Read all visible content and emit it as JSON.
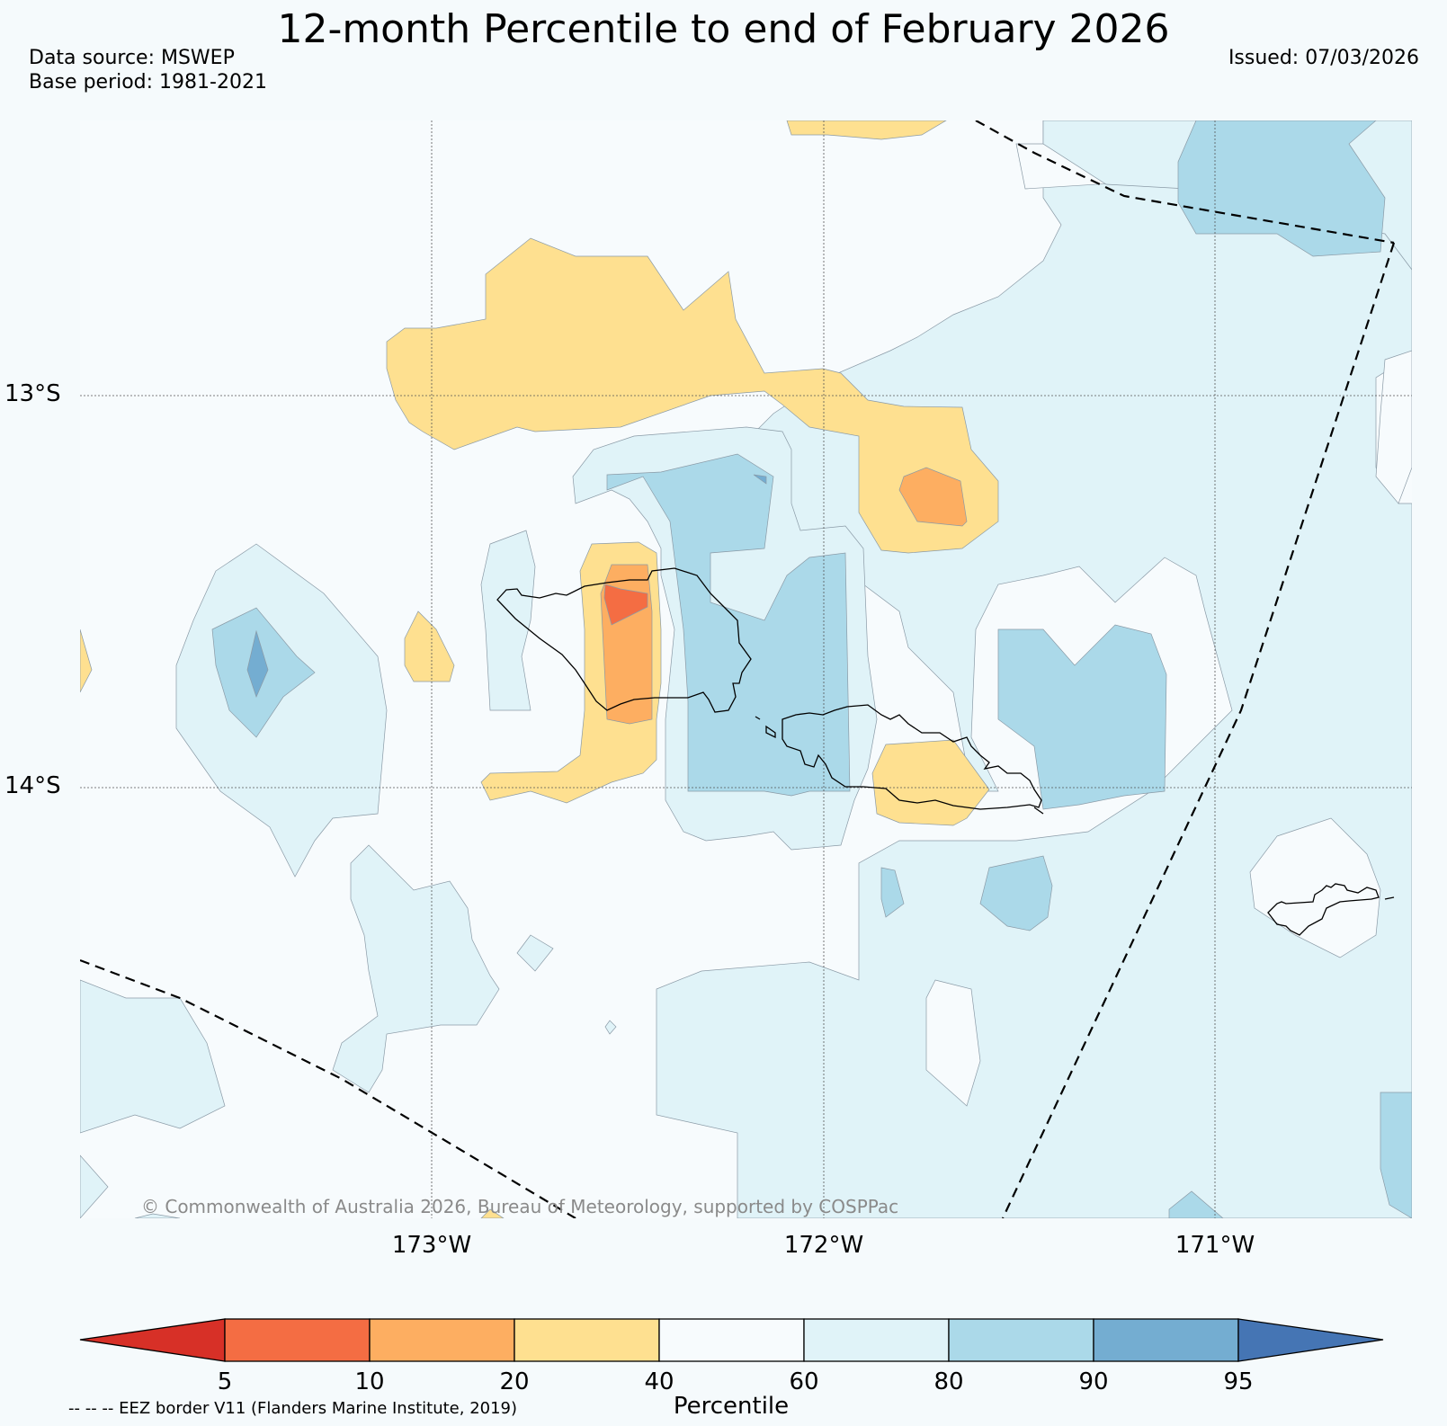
{
  "header": {
    "title": "12-month Percentile to end of February 2026",
    "data_source": "Data source: MSWEP",
    "base_period": "Base period: 1981-2021",
    "issued": "Issued: 07/03/2026"
  },
  "map": {
    "latitude_labels": [
      "13°S",
      "14°S"
    ],
    "longitude_labels": [
      "173°W",
      "172°W",
      "171°W"
    ],
    "copyright": "© Commonwealth of Australia 2026, Bureau of Meteorology, supported by COSPPac"
  },
  "legend": {
    "title": "Percentile",
    "ticks": [
      "5",
      "10",
      "20",
      "40",
      "60",
      "80",
      "90",
      "95"
    ],
    "colors": [
      "#d73027",
      "#f46d43",
      "#fdae61",
      "#fee090",
      "#f7fbfd",
      "#e0f3f8",
      "#abd9e9",
      "#74add1",
      "#4575b4"
    ],
    "eez_note": "-- -- -- EEZ border V11 (Flanders Marine Institute, 2019)"
  }
}
